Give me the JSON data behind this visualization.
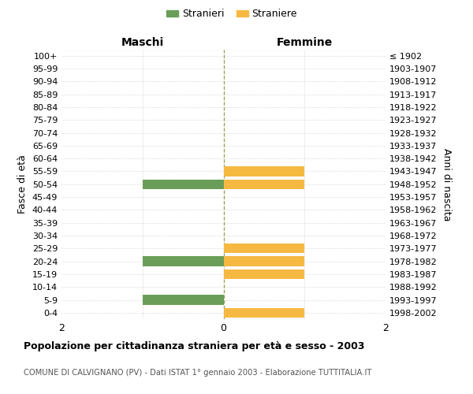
{
  "age_groups": [
    "0-4",
    "5-9",
    "10-14",
    "15-19",
    "20-24",
    "25-29",
    "30-34",
    "35-39",
    "40-44",
    "45-49",
    "50-54",
    "55-59",
    "60-64",
    "65-69",
    "70-74",
    "75-79",
    "80-84",
    "85-89",
    "90-94",
    "95-99",
    "100+"
  ],
  "birth_years": [
    "1998-2002",
    "1993-1997",
    "1988-1992",
    "1983-1987",
    "1978-1982",
    "1973-1977",
    "1968-1972",
    "1963-1967",
    "1958-1962",
    "1953-1957",
    "1948-1952",
    "1943-1947",
    "1938-1942",
    "1933-1937",
    "1928-1932",
    "1923-1927",
    "1918-1922",
    "1913-1917",
    "1908-1912",
    "1903-1907",
    "≤ 1902"
  ],
  "males": [
    0,
    1,
    0,
    0,
    1,
    0,
    0,
    0,
    0,
    0,
    1,
    0,
    0,
    0,
    0,
    0,
    0,
    0,
    0,
    0,
    0
  ],
  "females": [
    1,
    0,
    0,
    1,
    1,
    1,
    0,
    0,
    0,
    0,
    1,
    1,
    0,
    0,
    0,
    0,
    0,
    0,
    0,
    0,
    0
  ],
  "xlim": 2,
  "color_male": "#6a9e58",
  "color_female": "#f5b942",
  "title": "Popolazione per cittadinanza straniera per età e sesso - 2003",
  "subtitle": "COMUNE DI CALVIGNANO (PV) - Dati ISTAT 1° gennaio 2003 - Elaborazione TUTTITALIA.IT",
  "legend_male": "Stranieri",
  "legend_female": "Straniere",
  "ylabel_left": "Fasce di età",
  "ylabel_right": "Anni di nascita",
  "header_left": "Maschi",
  "header_right": "Femmine",
  "background_color": "#ffffff",
  "grid_color": "#cccccc",
  "bar_height": 0.75
}
